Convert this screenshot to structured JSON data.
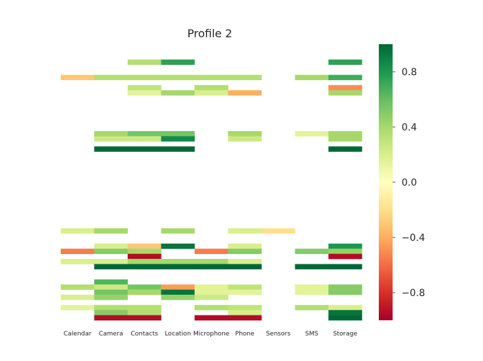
{
  "chart_data": {
    "type": "heatmap",
    "title": "Profile 2",
    "xlabel": "",
    "ylabel": "",
    "colormap": "RdYlGn",
    "vmin": -1,
    "vmax": 1,
    "categories": [
      "Calendar",
      "Camera",
      "Contacts",
      "Location",
      "Microphone",
      "Phone",
      "Sensors",
      "SMS",
      "Storage"
    ],
    "colorbar": {
      "ticks": [
        -0.8,
        -0.4,
        0.0,
        0.4,
        0.8
      ],
      "tick_labels": [
        "−0.8",
        "−0.4",
        "0.0",
        "0.4",
        "0.8"
      ]
    },
    "n_rows": 54,
    "cells": [
      {
        "row": 3,
        "col": 2,
        "value": 0.35
      },
      {
        "row": 3,
        "col": 3,
        "value": 0.75
      },
      {
        "row": 3,
        "col": 8,
        "value": 0.75
      },
      {
        "row": 6,
        "col": 0,
        "value": -0.3
      },
      {
        "row": 6,
        "col": 1,
        "value": 0.35
      },
      {
        "row": 6,
        "col": 2,
        "value": 0.35
      },
      {
        "row": 6,
        "col": 3,
        "value": 0.35
      },
      {
        "row": 6,
        "col": 4,
        "value": 0.35
      },
      {
        "row": 6,
        "col": 5,
        "value": 0.35
      },
      {
        "row": 6,
        "col": 7,
        "value": 0.4
      },
      {
        "row": 6,
        "col": 8,
        "value": 0.7
      },
      {
        "row": 8,
        "col": 2,
        "value": 0.3
      },
      {
        "row": 8,
        "col": 4,
        "value": 0.35
      },
      {
        "row": 8,
        "col": 8,
        "value": -0.5
      },
      {
        "row": 9,
        "col": 2,
        "value": 0.15
      },
      {
        "row": 9,
        "col": 3,
        "value": 0.4
      },
      {
        "row": 9,
        "col": 4,
        "value": 0.2
      },
      {
        "row": 9,
        "col": 5,
        "value": -0.4
      },
      {
        "row": 9,
        "col": 8,
        "value": 0.4
      },
      {
        "row": 17,
        "col": 1,
        "value": 0.4
      },
      {
        "row": 17,
        "col": 2,
        "value": 0.55
      },
      {
        "row": 17,
        "col": 3,
        "value": 0.55
      },
      {
        "row": 17,
        "col": 5,
        "value": 0.4
      },
      {
        "row": 17,
        "col": 7,
        "value": 0.15
      },
      {
        "row": 17,
        "col": 8,
        "value": 0.4
      },
      {
        "row": 18,
        "col": 1,
        "value": 0.25
      },
      {
        "row": 18,
        "col": 2,
        "value": 0.25
      },
      {
        "row": 18,
        "col": 3,
        "value": 0.85
      },
      {
        "row": 18,
        "col": 5,
        "value": 0.25
      },
      {
        "row": 18,
        "col": 8,
        "value": 0.4
      },
      {
        "row": 20,
        "col": 1,
        "value": 1.0
      },
      {
        "row": 20,
        "col": 2,
        "value": 1.0
      },
      {
        "row": 20,
        "col": 3,
        "value": 1.0
      },
      {
        "row": 20,
        "col": 8,
        "value": 1.0
      },
      {
        "row": 36,
        "col": 0,
        "value": 0.2
      },
      {
        "row": 36,
        "col": 1,
        "value": 0.4
      },
      {
        "row": 36,
        "col": 3,
        "value": 0.4
      },
      {
        "row": 36,
        "col": 5,
        "value": 0.2
      },
      {
        "row": 36,
        "col": 6,
        "value": -0.2
      },
      {
        "row": 39,
        "col": 1,
        "value": 0.2
      },
      {
        "row": 39,
        "col": 2,
        "value": -0.3
      },
      {
        "row": 39,
        "col": 3,
        "value": 0.95
      },
      {
        "row": 39,
        "col": 5,
        "value": 0.2
      },
      {
        "row": 39,
        "col": 8,
        "value": 0.8
      },
      {
        "row": 40,
        "col": 0,
        "value": -0.55
      },
      {
        "row": 40,
        "col": 1,
        "value": 0.5
      },
      {
        "row": 40,
        "col": 2,
        "value": 0.4
      },
      {
        "row": 40,
        "col": 4,
        "value": -0.55
      },
      {
        "row": 40,
        "col": 5,
        "value": 0.5
      },
      {
        "row": 40,
        "col": 7,
        "value": 0.5
      },
      {
        "row": 40,
        "col": 8,
        "value": 0.45
      },
      {
        "row": 41,
        "col": 2,
        "value": -0.95
      },
      {
        "row": 41,
        "col": 8,
        "value": -0.95
      },
      {
        "row": 42,
        "col": 0,
        "value": 0.2
      },
      {
        "row": 42,
        "col": 1,
        "value": 0.2
      },
      {
        "row": 42,
        "col": 2,
        "value": 0.4
      },
      {
        "row": 42,
        "col": 3,
        "value": 0.4
      },
      {
        "row": 42,
        "col": 4,
        "value": 0.4
      },
      {
        "row": 42,
        "col": 5,
        "value": 0.2
      },
      {
        "row": 43,
        "col": 1,
        "value": 1.0
      },
      {
        "row": 43,
        "col": 2,
        "value": 1.0
      },
      {
        "row": 43,
        "col": 3,
        "value": 1.0
      },
      {
        "row": 43,
        "col": 4,
        "value": 1.0
      },
      {
        "row": 43,
        "col": 5,
        "value": 1.0
      },
      {
        "row": 43,
        "col": 7,
        "value": 1.0
      },
      {
        "row": 43,
        "col": 8,
        "value": 1.0
      },
      {
        "row": 46,
        "col": 1,
        "value": 0.65
      },
      {
        "row": 47,
        "col": 0,
        "value": 0.35
      },
      {
        "row": 47,
        "col": 1,
        "value": 0.25
      },
      {
        "row": 47,
        "col": 2,
        "value": 0.55
      },
      {
        "row": 47,
        "col": 3,
        "value": -0.45
      },
      {
        "row": 47,
        "col": 4,
        "value": 0.15
      },
      {
        "row": 47,
        "col": 5,
        "value": 0.3
      },
      {
        "row": 47,
        "col": 7,
        "value": 0.15
      },
      {
        "row": 47,
        "col": 8,
        "value": 0.5
      },
      {
        "row": 48,
        "col": 1,
        "value": 0.55
      },
      {
        "row": 48,
        "col": 2,
        "value": 0.4
      },
      {
        "row": 48,
        "col": 3,
        "value": 0.95
      },
      {
        "row": 48,
        "col": 4,
        "value": 0.15
      },
      {
        "row": 48,
        "col": 5,
        "value": 0.15
      },
      {
        "row": 48,
        "col": 7,
        "value": 0.15
      },
      {
        "row": 48,
        "col": 8,
        "value": 0.5
      },
      {
        "row": 49,
        "col": 0,
        "value": 0.2
      },
      {
        "row": 49,
        "col": 1,
        "value": 0.45
      },
      {
        "row": 49,
        "col": 3,
        "value": 0.45
      },
      {
        "row": 49,
        "col": 4,
        "value": 0.25
      },
      {
        "row": 51,
        "col": 0,
        "value": 0.15
      },
      {
        "row": 51,
        "col": 1,
        "value": 0.35
      },
      {
        "row": 51,
        "col": 2,
        "value": 0.35
      },
      {
        "row": 51,
        "col": 4,
        "value": 0.35
      },
      {
        "row": 51,
        "col": 5,
        "value": 0.3
      },
      {
        "row": 51,
        "col": 7,
        "value": 0.35
      },
      {
        "row": 51,
        "col": 8,
        "value": 0.2
      },
      {
        "row": 52,
        "col": 1,
        "value": 0.5
      },
      {
        "row": 52,
        "col": 2,
        "value": 0.35
      },
      {
        "row": 52,
        "col": 5,
        "value": 0.2
      },
      {
        "row": 52,
        "col": 8,
        "value": 0.95
      },
      {
        "row": 53,
        "col": 1,
        "value": -0.95
      },
      {
        "row": 53,
        "col": 2,
        "value": -0.95
      },
      {
        "row": 53,
        "col": 4,
        "value": -0.95
      },
      {
        "row": 53,
        "col": 5,
        "value": -0.95
      },
      {
        "row": 53,
        "col": 8,
        "value": 1.0
      }
    ]
  }
}
